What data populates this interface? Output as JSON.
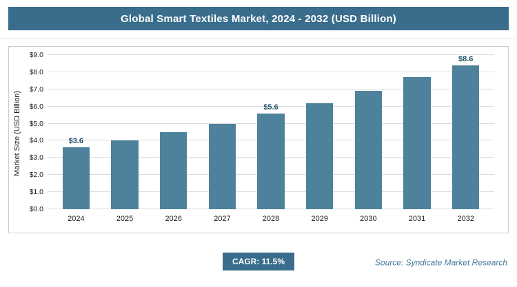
{
  "header": {
    "title": "Global Smart Textiles Market, 2024 - 2032 (USD Billion)"
  },
  "footer": {
    "cagr": "CAGR: 11.5%",
    "source": "Source: Syndicate Market Research"
  },
  "colors": {
    "banner": "#3a6d8c",
    "bar": "#4e819b",
    "accent_text": "#1d4f66",
    "source_text": "#44789a",
    "gridline": "#d8dde0",
    "border": "#c8cdd2"
  },
  "chart_data": {
    "type": "bar",
    "title": "Global Smart Textiles Market, 2024 - 2032 (USD Billion)",
    "categories": [
      "2024",
      "2025",
      "2026",
      "2027",
      "2028",
      "2029",
      "2030",
      "2031",
      "2032"
    ],
    "values": [
      3.6,
      4.0,
      4.5,
      5.0,
      5.6,
      6.2,
      6.9,
      7.7,
      8.6
    ],
    "labeled_points": {
      "2024": "$3.6",
      "2028": "$5.6",
      "2032": "$8.6"
    },
    "xlabel": "",
    "ylabel": "Market Size (USD Billion)",
    "ylim": [
      0,
      9
    ],
    "ytick_step": 1,
    "ytick_prefix": "$",
    "grid": "horizontal",
    "legend": "none"
  }
}
